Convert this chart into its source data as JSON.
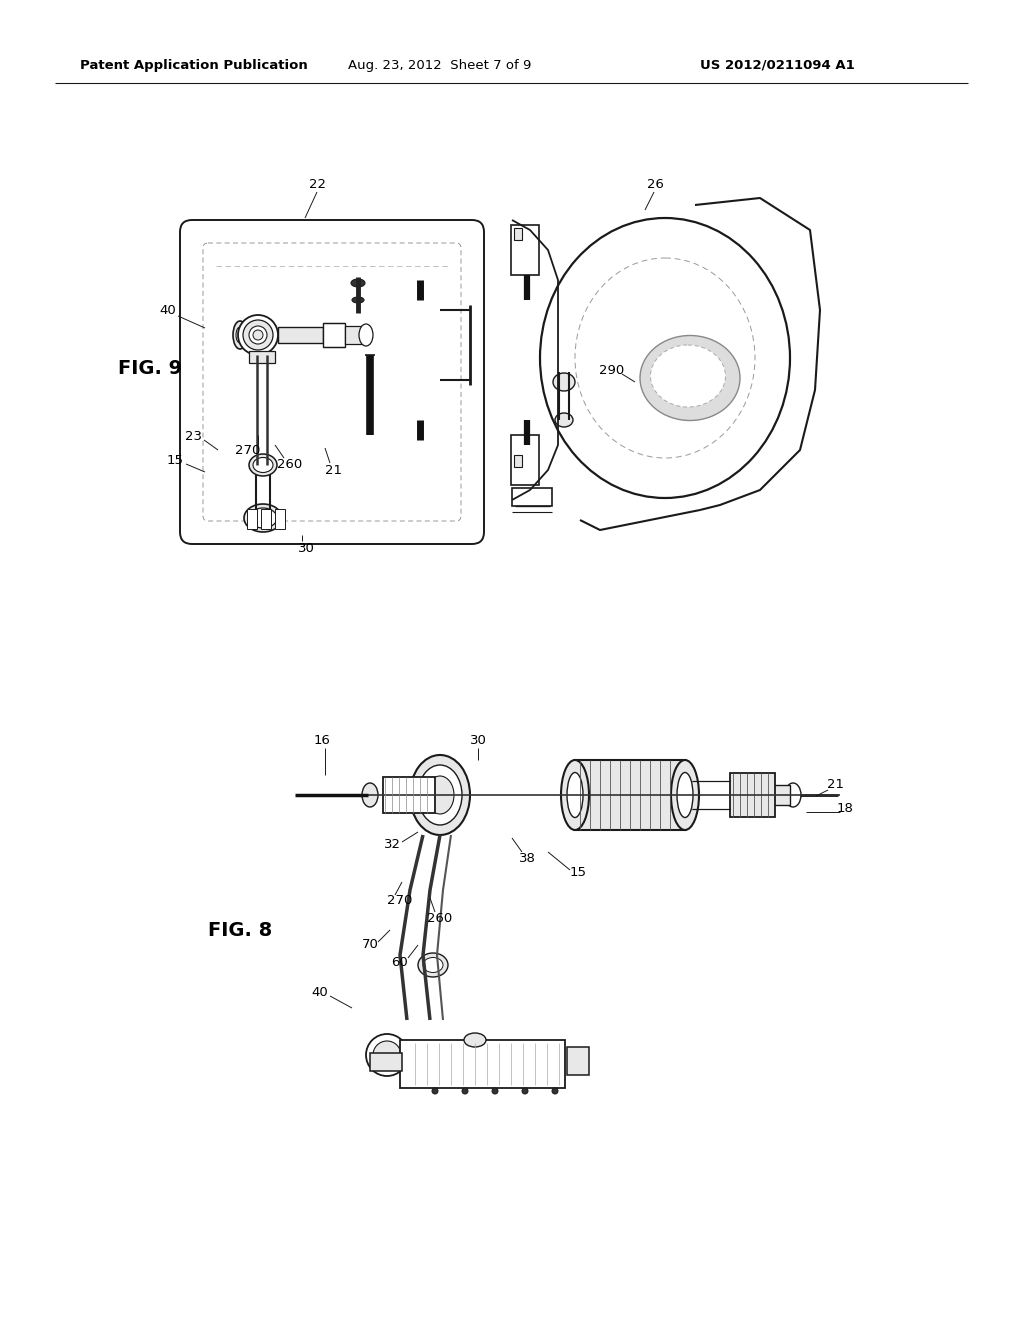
{
  "bg_color": "#ffffff",
  "header_left": "Patent Application Publication",
  "header_center": "Aug. 23, 2012  Sheet 7 of 9",
  "header_right": "US 2012/0211094 A1",
  "fig9_label": "FIG. 9",
  "fig8_label": "FIG. 8",
  "line_color": "#1a1a1a",
  "gray_fill": "#e8e8e8",
  "dark_fill": "#555555"
}
